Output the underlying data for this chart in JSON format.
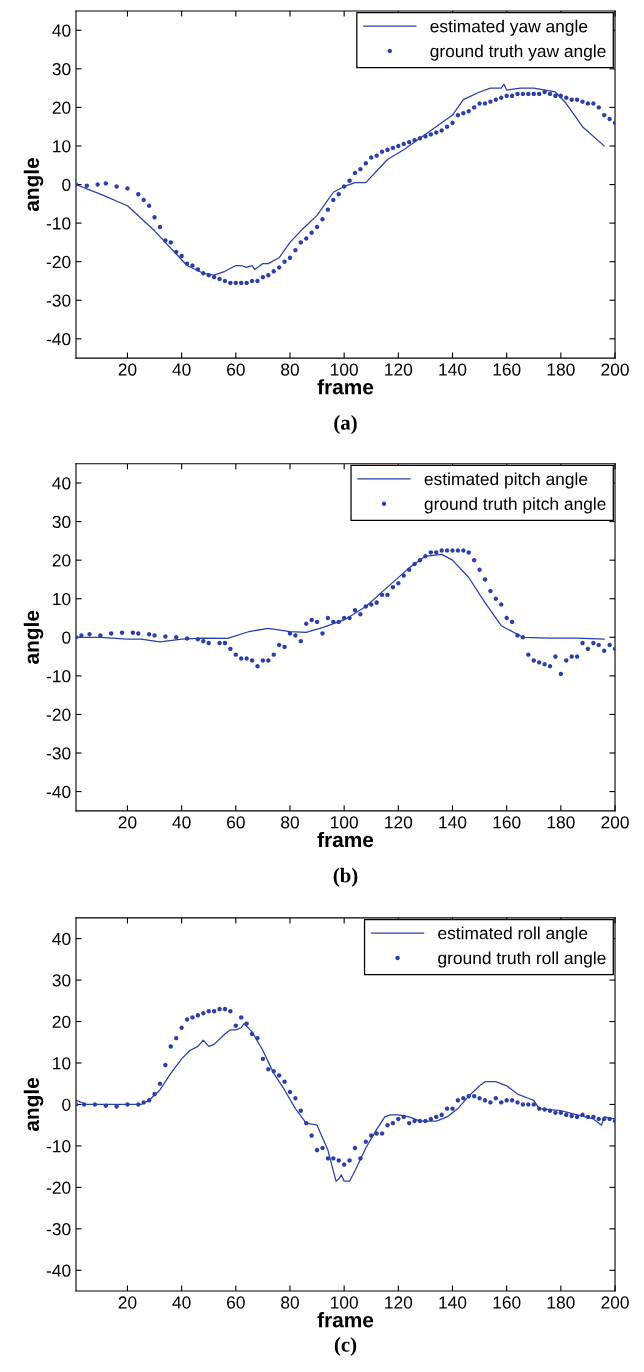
{
  "chart_data": [
    {
      "type": "line",
      "title": "(a)",
      "xlabel": "frame",
      "ylabel": "angle",
      "xlim": [
        1,
        200
      ],
      "ylim": [
        -45,
        45
      ],
      "xticks": [
        20,
        40,
        60,
        80,
        100,
        120,
        140,
        160,
        180,
        200
      ],
      "yticks": [
        -40,
        -30,
        -20,
        -10,
        0,
        10,
        20,
        30,
        40
      ],
      "grid": false,
      "legend": "top right",
      "series": [
        {
          "name": "estimated yaw angle",
          "color": "#2b3fa8",
          "marker": "none",
          "x": [
            1,
            10,
            20,
            30,
            38,
            40,
            42,
            48,
            52,
            56,
            60,
            62,
            64,
            66,
            67,
            70,
            72,
            76,
            80,
            84,
            90,
            96,
            100,
            104,
            108,
            112,
            116,
            122,
            126,
            132,
            140,
            144,
            150,
            154,
            158,
            159,
            160,
            165,
            170,
            178,
            182,
            188,
            196
          ],
          "values": [
            0,
            -2.5,
            -5.5,
            -12,
            -18,
            -19.5,
            -21,
            -23,
            -23.5,
            -22.5,
            -21,
            -21,
            -21.5,
            -21,
            -22,
            -20.5,
            -20.5,
            -19,
            -15,
            -12,
            -8,
            -2,
            -0.5,
            0.5,
            0.5,
            3.5,
            6.5,
            9,
            11,
            14,
            18,
            22,
            24,
            25,
            25,
            26,
            24.5,
            25,
            25,
            24,
            21,
            15,
            10
          ]
        },
        {
          "name": "ground truth yaw angle",
          "type": "scatter",
          "color": "#2b3fa8",
          "marker": "circle",
          "x": [
            1,
            5,
            9,
            12,
            16,
            20,
            24,
            26,
            28,
            30,
            32,
            34,
            36,
            38,
            40,
            42,
            44,
            46,
            48,
            50,
            52,
            54,
            56,
            58,
            60,
            62,
            64,
            66,
            68,
            70,
            72,
            74,
            76,
            78,
            80,
            82,
            84,
            86,
            88,
            90,
            92,
            94,
            96,
            98,
            100,
            102,
            104,
            106,
            108,
            110,
            112,
            114,
            116,
            118,
            120,
            122,
            124,
            126,
            128,
            130,
            132,
            134,
            136,
            138,
            140,
            142,
            144,
            146,
            148,
            150,
            152,
            154,
            156,
            158,
            160,
            162,
            164,
            166,
            168,
            170,
            172,
            174,
            176,
            178,
            180,
            182,
            184,
            186,
            188,
            190,
            192,
            194,
            196,
            198,
            200
          ],
          "values": [
            0,
            -0.3,
            0,
            0.3,
            -0.5,
            -1,
            -2.5,
            -4,
            -5.5,
            -8.5,
            -11,
            -14.5,
            -15,
            -17.5,
            -18.5,
            -20.5,
            -21,
            -22,
            -23,
            -23.5,
            -24,
            -24.5,
            -25,
            -25.5,
            -25.5,
            -25.5,
            -25.5,
            -25,
            -25,
            -24,
            -23.5,
            -22.5,
            -21.5,
            -20,
            -19,
            -17,
            -15,
            -14,
            -12.5,
            -11,
            -9,
            -6.5,
            -4,
            -2.5,
            -0.5,
            1,
            3,
            4,
            5.5,
            7,
            7.5,
            8.5,
            9,
            9.5,
            10,
            10.5,
            11,
            11.5,
            12,
            12.5,
            13,
            13.5,
            14,
            15,
            16,
            18,
            18.5,
            19,
            20,
            21,
            21,
            21.5,
            22,
            22.5,
            23,
            23,
            23.5,
            23.5,
            23.5,
            23.5,
            23.5,
            24,
            23.5,
            23,
            23,
            22.5,
            22,
            22,
            21.5,
            21,
            21,
            20,
            18,
            17,
            16
          ]
        }
      ]
    },
    {
      "type": "line",
      "title": "(b)",
      "xlabel": "frame",
      "ylabel": "angle",
      "xlim": [
        1,
        200
      ],
      "ylim": [
        -45,
        45
      ],
      "xticks": [
        20,
        40,
        60,
        80,
        100,
        120,
        140,
        160,
        180,
        200
      ],
      "yticks": [
        -40,
        -30,
        -20,
        -10,
        0,
        10,
        20,
        30,
        40
      ],
      "grid": false,
      "legend": "top right",
      "series": [
        {
          "name": "estimated pitch angle",
          "color": "#2b3fa8",
          "marker": "none",
          "x": [
            1,
            10,
            20,
            25,
            32,
            40,
            48,
            57,
            65,
            72,
            80,
            86,
            92,
            100,
            108,
            116,
            124,
            130,
            136,
            140,
            146,
            152,
            158,
            166,
            176,
            186,
            196
          ],
          "values": [
            0,
            0,
            -0.5,
            -0.5,
            -1.2,
            -0.5,
            -0.2,
            -0.3,
            1.5,
            2.3,
            1.5,
            1.3,
            2.5,
            4.5,
            8,
            13,
            18,
            21,
            21.5,
            20,
            15.5,
            9,
            3,
            0,
            -0.2,
            -0.2,
            -0.5
          ]
        },
        {
          "name": "ground truth pitch angle",
          "type": "scatter",
          "color": "#2b3fa8",
          "marker": "circle",
          "x": [
            1,
            3,
            6,
            10,
            14,
            18,
            22,
            24,
            28,
            30,
            34,
            38,
            42,
            46,
            48,
            50,
            54,
            56,
            58,
            60,
            62,
            64,
            66,
            68,
            70,
            72,
            74,
            76,
            78,
            80,
            82,
            84,
            86,
            88,
            90,
            92,
            94,
            96,
            98,
            100,
            102,
            104,
            106,
            108,
            110,
            112,
            114,
            116,
            118,
            120,
            122,
            124,
            126,
            128,
            130,
            132,
            134,
            136,
            138,
            140,
            142,
            144,
            146,
            148,
            150,
            152,
            154,
            156,
            158,
            160,
            162,
            164,
            166,
            168,
            170,
            172,
            174,
            176,
            178,
            180,
            182,
            184,
            186,
            188,
            190,
            192,
            194,
            196,
            198,
            200
          ],
          "values": [
            0,
            0.5,
            0.8,
            0.5,
            1,
            1.2,
            1.2,
            1,
            0.8,
            0.5,
            0.2,
            0,
            -0.3,
            -0.5,
            -1,
            -1.5,
            -1.5,
            -1.5,
            -3,
            -4.5,
            -5.5,
            -5.5,
            -6,
            -7.5,
            -6,
            -6,
            -4.5,
            -2,
            -2.5,
            1,
            0.5,
            -1,
            3.5,
            4.5,
            4,
            1,
            5,
            4,
            4,
            5,
            5,
            7,
            6,
            8,
            8.5,
            9,
            11,
            11,
            13,
            14,
            16,
            17.5,
            19,
            20,
            21,
            22,
            22,
            22.5,
            22.5,
            22.5,
            22.5,
            22.5,
            22,
            20,
            17.5,
            15,
            12,
            10,
            8.5,
            5,
            4,
            0.5,
            0,
            -4.5,
            -6,
            -6.5,
            -7,
            -7.5,
            -5,
            -9.5,
            -6,
            -5,
            -5,
            -1.5,
            -3,
            -1.5,
            -2,
            -3.5,
            -2,
            -3
          ]
        }
      ]
    },
    {
      "type": "line",
      "title": "(c)",
      "xlabel": "frame",
      "ylabel": "angle",
      "xlim": [
        1,
        200
      ],
      "ylim": [
        -45,
        45
      ],
      "xticks": [
        20,
        40,
        60,
        80,
        100,
        120,
        140,
        160,
        180,
        200
      ],
      "yticks": [
        -40,
        -30,
        -20,
        -10,
        0,
        10,
        20,
        30,
        40
      ],
      "grid": false,
      "legend": "top right",
      "series": [
        {
          "name": "estimated roll angle",
          "color": "#2b3fa8",
          "marker": "none",
          "x": [
            1,
            5,
            15,
            25,
            28,
            32,
            36,
            40,
            43,
            46,
            48,
            50,
            52,
            56,
            58,
            60,
            62,
            63,
            66,
            70,
            74,
            78,
            82,
            86,
            90,
            92,
            94,
            96,
            97,
            98,
            99,
            100,
            102,
            104,
            108,
            112,
            115,
            117,
            120,
            124,
            128,
            134,
            138,
            142,
            146,
            150,
            152,
            156,
            160,
            164,
            168,
            170,
            172,
            180,
            186,
            192,
            195,
            196,
            200
          ],
          "values": [
            1,
            0,
            0,
            0,
            1,
            3.5,
            7.5,
            11,
            13,
            14,
            15.5,
            14,
            14.5,
            17,
            18,
            18,
            18.5,
            19.5,
            17.5,
            13,
            7.5,
            3.5,
            -1,
            -4.5,
            -5,
            -8,
            -11,
            -16,
            -18.5,
            -18,
            -17,
            -18.5,
            -18.5,
            -16,
            -10.5,
            -6,
            -3,
            -2.5,
            -2.5,
            -3,
            -4,
            -4,
            -3,
            -1,
            2,
            4.5,
            5.5,
            5.5,
            4.5,
            2.5,
            1.5,
            1,
            -1,
            -1.5,
            -2.5,
            -3.5,
            -5,
            -3,
            -3.5
          ]
        },
        {
          "name": "ground truth roll angle",
          "type": "scatter",
          "color": "#2b3fa8",
          "marker": "circle",
          "x": [
            1,
            4,
            8,
            12,
            16,
            20,
            24,
            26,
            28,
            30,
            32,
            34,
            36,
            38,
            40,
            42,
            44,
            46,
            48,
            50,
            52,
            54,
            56,
            58,
            60,
            62,
            64,
            66,
            68,
            70,
            72,
            74,
            76,
            78,
            80,
            82,
            84,
            86,
            88,
            90,
            92,
            94,
            96,
            98,
            100,
            102,
            104,
            106,
            108,
            110,
            112,
            114,
            116,
            118,
            120,
            122,
            124,
            126,
            128,
            130,
            132,
            134,
            136,
            138,
            140,
            142,
            144,
            146,
            148,
            150,
            152,
            154,
            156,
            158,
            160,
            162,
            164,
            166,
            168,
            170,
            172,
            174,
            176,
            178,
            180,
            182,
            184,
            186,
            188,
            190,
            192,
            194,
            196,
            198,
            200
          ],
          "values": [
            0,
            0,
            0,
            -0.3,
            -0.5,
            0,
            0,
            0.5,
            1,
            2.5,
            5,
            9.5,
            14,
            16,
            18.5,
            20.5,
            21,
            21.5,
            22,
            22.5,
            22.5,
            23,
            23,
            22.5,
            19,
            21,
            19.5,
            17,
            16,
            11,
            8.5,
            8,
            7,
            5.5,
            3,
            1.5,
            -1.5,
            -4.5,
            -7.5,
            -11,
            -10.5,
            -13,
            -13,
            -13.5,
            -14.5,
            -13.5,
            -10.5,
            -13,
            -9,
            -7.5,
            -7,
            -7,
            -5,
            -4.5,
            -3.5,
            -3,
            -4.5,
            -4,
            -4,
            -4,
            -3.5,
            -3,
            -2.5,
            -1,
            -1,
            1,
            1.5,
            2,
            2,
            1.5,
            1,
            0.5,
            1.5,
            0.5,
            1,
            1,
            0.5,
            0,
            0,
            0,
            -1,
            -1.2,
            -1.5,
            -2,
            -2,
            -2.5,
            -2.8,
            -3,
            -2.5,
            -3,
            -3,
            -3.5,
            -3.5,
            -3.5,
            -4
          ]
        }
      ]
    }
  ]
}
